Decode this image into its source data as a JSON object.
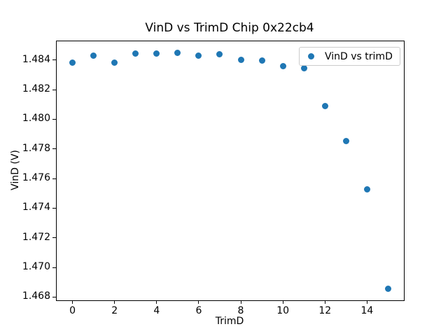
{
  "chart_data": {
    "type": "scatter",
    "title": "VinD vs TrimD Chip 0x22cb4",
    "xlabel": "TrimD",
    "ylabel": "VinD (V)",
    "series": [
      {
        "name": "VinD vs trimD",
        "x": [
          0,
          1,
          2,
          3,
          4,
          5,
          6,
          7,
          8,
          9,
          10,
          11,
          12,
          13,
          14,
          15
        ],
        "y": [
          1.48383,
          1.48428,
          1.48382,
          1.48444,
          1.48443,
          1.48447,
          1.48429,
          1.48437,
          1.48402,
          1.48396,
          1.48356,
          1.48346,
          1.48089,
          1.47852,
          1.47528,
          1.46857
        ]
      }
    ],
    "marker_color": "#1f77b4",
    "axes_color": "#000000",
    "background_color": "#ffffff",
    "xlim": [
      -0.75,
      15.75
    ],
    "ylim": [
      1.46778,
      1.48526
    ],
    "xticks": [
      0,
      2,
      4,
      6,
      8,
      10,
      12,
      14
    ],
    "yticks": [
      1.468,
      1.47,
      1.472,
      1.474,
      1.476,
      1.478,
      1.48,
      1.482,
      1.484
    ],
    "ytick_decimals": 3,
    "grid": false,
    "legend": {
      "label": "VinD vs trimD",
      "position": "upper right"
    }
  }
}
